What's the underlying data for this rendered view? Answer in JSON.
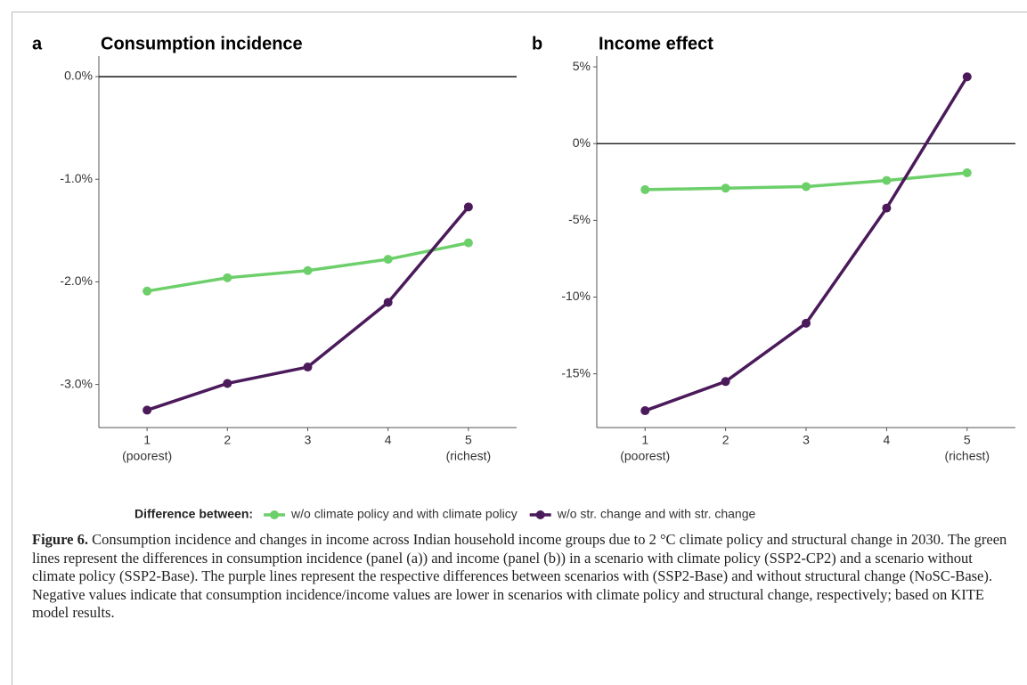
{
  "chart_data": [
    {
      "type": "line",
      "panel_label": "a",
      "title": "Consumption incidence",
      "x": [
        1,
        2,
        3,
        4,
        5
      ],
      "xlim": [
        0.4,
        5.6
      ],
      "xticks": [
        1,
        2,
        3,
        4,
        5
      ],
      "xtick_notes": [
        "(poorest)",
        null,
        null,
        null,
        "(richest)"
      ],
      "ylim": [
        -3.42,
        0.2
      ],
      "yticks": [
        {
          "value": 0,
          "label": "0.0%"
        },
        {
          "value": -1,
          "label": "-1.0%"
        },
        {
          "value": -2,
          "label": "-2.0%"
        },
        {
          "value": -3,
          "label": "-3.0%"
        }
      ],
      "hline": 0,
      "series": [
        {
          "name": "w/o climate policy and with climate policy",
          "color": "#6ccf6a",
          "values": [
            -2.09,
            -1.96,
            -1.89,
            -1.78,
            -1.62
          ]
        },
        {
          "name": "w/o str. change and with str. change",
          "color": "#4b1a5b",
          "values": [
            -3.25,
            -2.99,
            -2.83,
            -2.2,
            -1.27
          ]
        }
      ]
    },
    {
      "type": "line",
      "panel_label": "b",
      "title": "Income effect",
      "x": [
        1,
        2,
        3,
        4,
        5
      ],
      "xlim": [
        0.4,
        5.6
      ],
      "xticks": [
        1,
        2,
        3,
        4,
        5
      ],
      "xtick_notes": [
        "(poorest)",
        null,
        null,
        null,
        "(richest)"
      ],
      "ylim": [
        -18.5,
        5.7
      ],
      "yticks": [
        {
          "value": 5,
          "label": "5%"
        },
        {
          "value": 0,
          "label": "0%"
        },
        {
          "value": -5,
          "label": "-5%"
        },
        {
          "value": -10,
          "label": "-10%"
        },
        {
          "value": -15,
          "label": "-15%"
        }
      ],
      "hline": 0,
      "series": [
        {
          "color": "#6ccf6a",
          "values": [
            -3.0,
            -2.9,
            -2.8,
            -2.4,
            -1.9
          ]
        },
        {
          "color": "#4b1a5b",
          "values": [
            -17.4,
            -15.5,
            -11.7,
            -4.2,
            4.35
          ]
        }
      ]
    }
  ],
  "legend": {
    "title": "Difference between:",
    "position": "bottom"
  },
  "caption": {
    "label": "Figure 6.",
    "text": "Consumption incidence and changes in income across Indian household income groups due to 2 °C climate policy and structural change in 2030. The green lines represent the differences in consumption incidence (panel (a)) and income (panel (b)) in a scenario with climate policy (SSP2-CP2) and a scenario without climate policy (SSP2-Base). The purple lines represent the respective differences between scenarios with (SSP2-Base) and without structural change (NoSC-Base). Negative values indicate that consumption incidence/income values are lower in scenarios with climate policy and structural change, respectively; based on KITE model results."
  }
}
